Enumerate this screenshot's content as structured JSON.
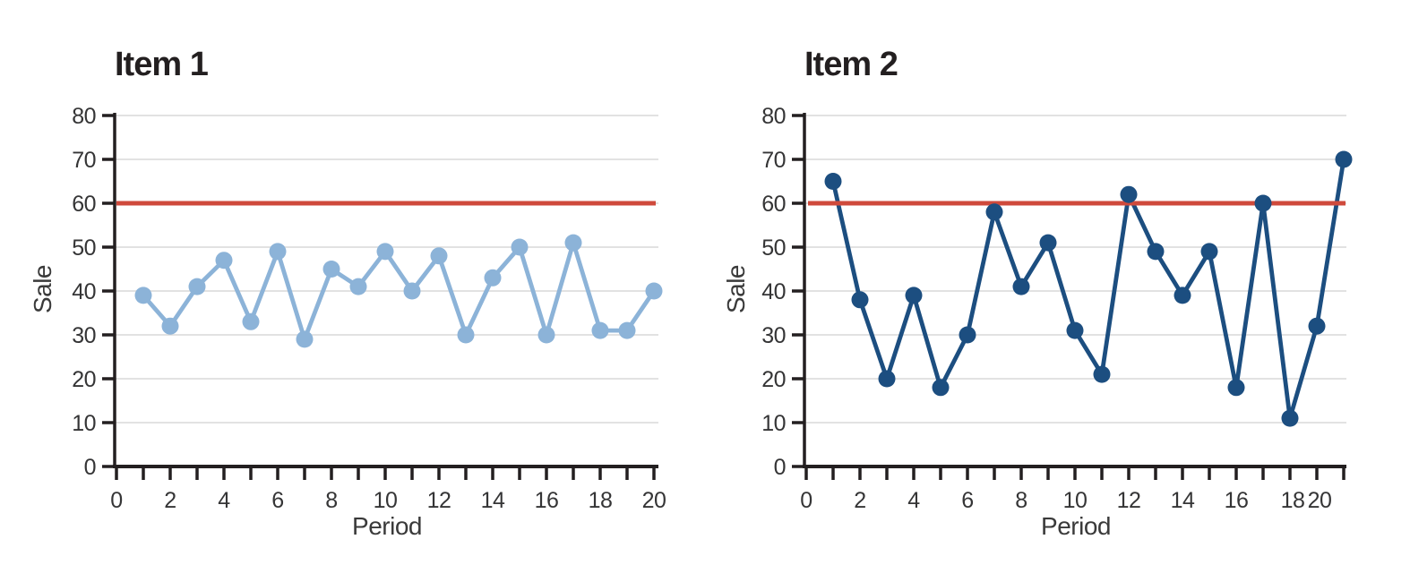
{
  "background": "#ffffff",
  "colors": {
    "axis": "#231f20",
    "grid": "#d9d9d9",
    "tick_text": "#353536",
    "title_text": "#231f20",
    "reference_red": "#cf4a3c",
    "item1_blue": "#8cb3d8",
    "item2_blue": "#1c4e80"
  },
  "chart_data": [
    {
      "type": "line",
      "title": "Item 1",
      "ylabel": "Sale",
      "xlabel": "Period",
      "x": [
        1,
        2,
        3,
        4,
        5,
        6,
        7,
        8,
        9,
        10,
        11,
        12,
        13,
        14,
        15,
        16,
        17,
        18,
        19,
        20
      ],
      "values": [
        39,
        32,
        41,
        47,
        33,
        49,
        29,
        45,
        41,
        49,
        40,
        48,
        30,
        43,
        50,
        30,
        51,
        31,
        31,
        40
      ],
      "series_color": "#8cb3d8",
      "marker": "circle",
      "reference_line_y": 60,
      "reference_color": "#cf4a3c",
      "xlim": [
        0,
        20
      ],
      "ylim": [
        0,
        80
      ],
      "yticks": [
        0,
        10,
        20,
        30,
        40,
        50,
        60,
        70,
        80
      ],
      "x_axis_labels": [
        {
          "text": "0",
          "at": 0
        },
        {
          "text": "2",
          "at": 2
        },
        {
          "text": "4",
          "at": 4
        },
        {
          "text": "6",
          "at": 6
        },
        {
          "text": "8",
          "at": 8
        },
        {
          "text": "10",
          "at": 10
        },
        {
          "text": "12",
          "at": 12
        },
        {
          "text": "14",
          "at": 14
        },
        {
          "text": "16",
          "at": 16
        },
        {
          "text": "18",
          "at": 18
        },
        {
          "text": "20",
          "at": 20
        }
      ],
      "grid": "horizontal",
      "legend": "none"
    },
    {
      "type": "line",
      "title": "Item 2",
      "ylabel": "Sale",
      "xlabel": "Period",
      "x": [
        1,
        2,
        3,
        4,
        5,
        6,
        7,
        8,
        9,
        10,
        11,
        12,
        13,
        14,
        15,
        16,
        17,
        18,
        19,
        20
      ],
      "values": [
        65,
        38,
        20,
        39,
        18,
        30,
        58,
        41,
        51,
        31,
        21,
        62,
        49,
        39,
        49,
        18,
        60,
        11,
        32,
        70
      ],
      "series_color": "#1c4e80",
      "marker": "circle",
      "reference_line_y": 60,
      "reference_color": "#cf4a3c",
      "xlim": [
        0,
        20
      ],
      "ylim": [
        0,
        80
      ],
      "yticks": [
        0,
        10,
        20,
        30,
        40,
        50,
        60,
        70,
        80
      ],
      "x_axis_labels": [
        {
          "text": "0",
          "at": 0
        },
        {
          "text": "2",
          "at": 2
        },
        {
          "text": "4",
          "at": 4
        },
        {
          "text": "6",
          "at": 6
        },
        {
          "text": "8",
          "at": 8
        },
        {
          "text": "10",
          "at": 10
        },
        {
          "text": "12",
          "at": 12
        },
        {
          "text": "14",
          "at": 14
        },
        {
          "text": "16",
          "at": 16
        },
        {
          "text": "18",
          "at": 18.1
        },
        {
          "text": "20",
          "at": 19.1
        }
      ],
      "grid": "horizontal",
      "legend": "none"
    }
  ]
}
